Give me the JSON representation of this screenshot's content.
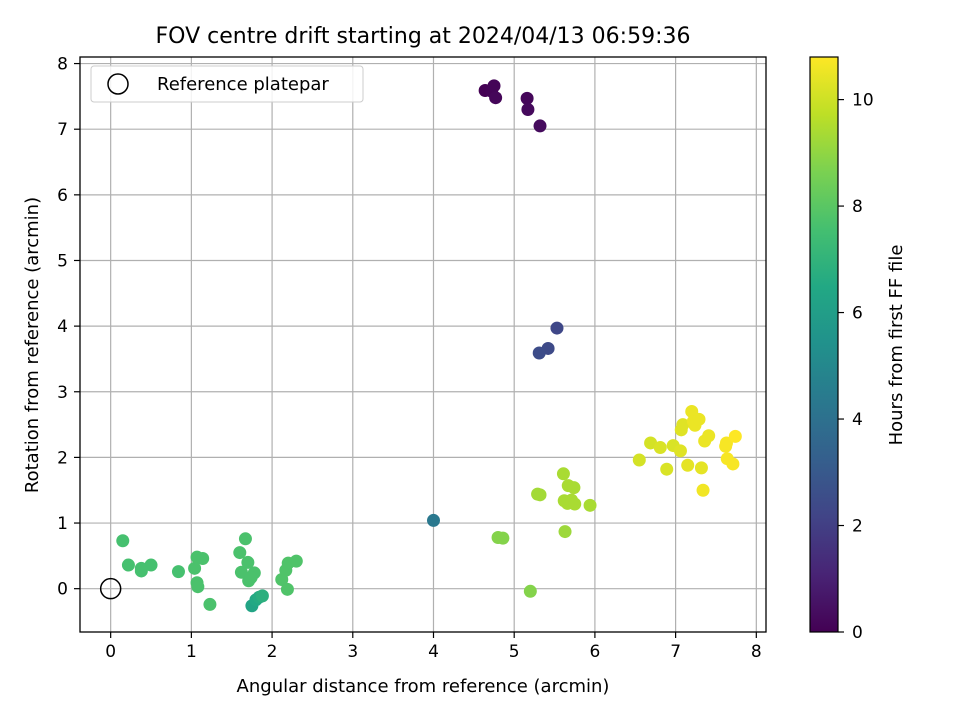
{
  "chart_data": {
    "type": "scatter",
    "title": "FOV centre drift starting at 2024/04/13 06:59:36",
    "xlabel": "Angular distance from reference (arcmin)",
    "ylabel": "Rotation from reference (arcmin)",
    "xlim": [
      -0.38,
      8.12
    ],
    "ylim": [
      -0.66,
      8.1
    ],
    "xticks": [
      0,
      1,
      2,
      3,
      4,
      5,
      6,
      7,
      8
    ],
    "yticks": [
      0,
      1,
      2,
      3,
      4,
      5,
      6,
      7,
      8
    ],
    "grid": true,
    "legend": {
      "placement": "top-left",
      "entries": [
        "Reference platepar"
      ]
    },
    "reference_point": {
      "x": 0,
      "y": 0
    },
    "colorbar": {
      "label": "Hours from first FF file",
      "range": [
        0,
        10.8
      ],
      "ticks": [
        0,
        2,
        4,
        6,
        8,
        10
      ],
      "colormap": "viridis"
    },
    "points": [
      {
        "x": 4.64,
        "y": 7.59,
        "h": 0.0
      },
      {
        "x": 4.72,
        "y": 7.58,
        "h": 0.05
      },
      {
        "x": 4.75,
        "y": 7.66,
        "h": 0.1
      },
      {
        "x": 4.77,
        "y": 7.48,
        "h": 0.15
      },
      {
        "x": 5.16,
        "y": 7.47,
        "h": 0.2
      },
      {
        "x": 5.17,
        "y": 7.3,
        "h": 0.25
      },
      {
        "x": 5.32,
        "y": 7.05,
        "h": 0.3
      },
      {
        "x": 5.53,
        "y": 3.97,
        "h": 2.3
      },
      {
        "x": 5.42,
        "y": 3.66,
        "h": 2.4
      },
      {
        "x": 5.31,
        "y": 3.59,
        "h": 2.5
      },
      {
        "x": 4.0,
        "y": 1.04,
        "h": 4.3
      },
      {
        "x": 1.75,
        "y": -0.26,
        "h": 6.3
      },
      {
        "x": 1.8,
        "y": -0.17,
        "h": 6.5
      },
      {
        "x": 1.84,
        "y": -0.13,
        "h": 6.6
      },
      {
        "x": 1.88,
        "y": -0.11,
        "h": 6.8
      },
      {
        "x": 0.15,
        "y": 0.73,
        "h": 7.6
      },
      {
        "x": 0.22,
        "y": 0.36,
        "h": 7.6
      },
      {
        "x": 0.38,
        "y": 0.27,
        "h": 7.6
      },
      {
        "x": 0.38,
        "y": 0.31,
        "h": 7.6
      },
      {
        "x": 0.5,
        "y": 0.36,
        "h": 7.6
      },
      {
        "x": 0.84,
        "y": 0.26,
        "h": 7.6
      },
      {
        "x": 1.04,
        "y": 0.31,
        "h": 7.7
      },
      {
        "x": 1.07,
        "y": 0.48,
        "h": 7.7
      },
      {
        "x": 1.14,
        "y": 0.46,
        "h": 7.7
      },
      {
        "x": 1.07,
        "y": 0.09,
        "h": 7.7
      },
      {
        "x": 1.08,
        "y": 0.03,
        "h": 7.7
      },
      {
        "x": 1.23,
        "y": -0.24,
        "h": 7.7
      },
      {
        "x": 1.6,
        "y": 0.55,
        "h": 7.7
      },
      {
        "x": 1.67,
        "y": 0.76,
        "h": 7.7
      },
      {
        "x": 1.7,
        "y": 0.4,
        "h": 7.7
      },
      {
        "x": 1.62,
        "y": 0.25,
        "h": 7.7
      },
      {
        "x": 1.78,
        "y": 0.24,
        "h": 7.7
      },
      {
        "x": 1.71,
        "y": 0.12,
        "h": 7.7
      },
      {
        "x": 1.74,
        "y": 0.17,
        "h": 7.7
      },
      {
        "x": 2.12,
        "y": 0.14,
        "h": 7.8
      },
      {
        "x": 2.17,
        "y": 0.28,
        "h": 7.8
      },
      {
        "x": 2.2,
        "y": 0.39,
        "h": 7.8
      },
      {
        "x": 2.3,
        "y": 0.42,
        "h": 7.8
      },
      {
        "x": 2.19,
        "y": -0.01,
        "h": 7.8
      },
      {
        "x": 4.8,
        "y": 0.78,
        "h": 8.8
      },
      {
        "x": 4.86,
        "y": 0.77,
        "h": 8.8
      },
      {
        "x": 5.2,
        "y": -0.04,
        "h": 8.8
      },
      {
        "x": 5.29,
        "y": 1.44,
        "h": 9.3
      },
      {
        "x": 5.32,
        "y": 1.43,
        "h": 9.3
      },
      {
        "x": 5.61,
        "y": 1.75,
        "h": 9.4
      },
      {
        "x": 5.67,
        "y": 1.57,
        "h": 9.4
      },
      {
        "x": 5.74,
        "y": 1.54,
        "h": 9.4
      },
      {
        "x": 5.62,
        "y": 1.34,
        "h": 9.4
      },
      {
        "x": 5.66,
        "y": 1.3,
        "h": 9.4
      },
      {
        "x": 5.71,
        "y": 1.35,
        "h": 9.4
      },
      {
        "x": 5.75,
        "y": 1.29,
        "h": 9.4
      },
      {
        "x": 5.94,
        "y": 1.27,
        "h": 9.4
      },
      {
        "x": 5.63,
        "y": 0.87,
        "h": 9.2
      },
      {
        "x": 6.55,
        "y": 1.96,
        "h": 10.1
      },
      {
        "x": 6.69,
        "y": 2.22,
        "h": 10.1
      },
      {
        "x": 6.81,
        "y": 2.15,
        "h": 10.2
      },
      {
        "x": 6.89,
        "y": 1.82,
        "h": 10.2
      },
      {
        "x": 6.97,
        "y": 2.18,
        "h": 10.2
      },
      {
        "x": 7.06,
        "y": 2.1,
        "h": 10.3
      },
      {
        "x": 7.07,
        "y": 2.42,
        "h": 10.3
      },
      {
        "x": 7.09,
        "y": 2.5,
        "h": 10.3
      },
      {
        "x": 7.15,
        "y": 1.88,
        "h": 10.4
      },
      {
        "x": 7.2,
        "y": 2.7,
        "h": 10.5
      },
      {
        "x": 7.22,
        "y": 2.55,
        "h": 10.5
      },
      {
        "x": 7.24,
        "y": 2.49,
        "h": 10.5
      },
      {
        "x": 7.29,
        "y": 2.58,
        "h": 10.5
      },
      {
        "x": 7.32,
        "y": 1.84,
        "h": 10.4
      },
      {
        "x": 7.34,
        "y": 1.5,
        "h": 10.6
      },
      {
        "x": 7.36,
        "y": 2.25,
        "h": 10.5
      },
      {
        "x": 7.41,
        "y": 2.33,
        "h": 10.5
      },
      {
        "x": 7.62,
        "y": 2.17,
        "h": 10.7
      },
      {
        "x": 7.63,
        "y": 2.22,
        "h": 10.7
      },
      {
        "x": 7.64,
        "y": 1.98,
        "h": 10.7
      },
      {
        "x": 7.71,
        "y": 1.9,
        "h": 10.7
      },
      {
        "x": 7.74,
        "y": 2.32,
        "h": 10.8
      }
    ]
  }
}
